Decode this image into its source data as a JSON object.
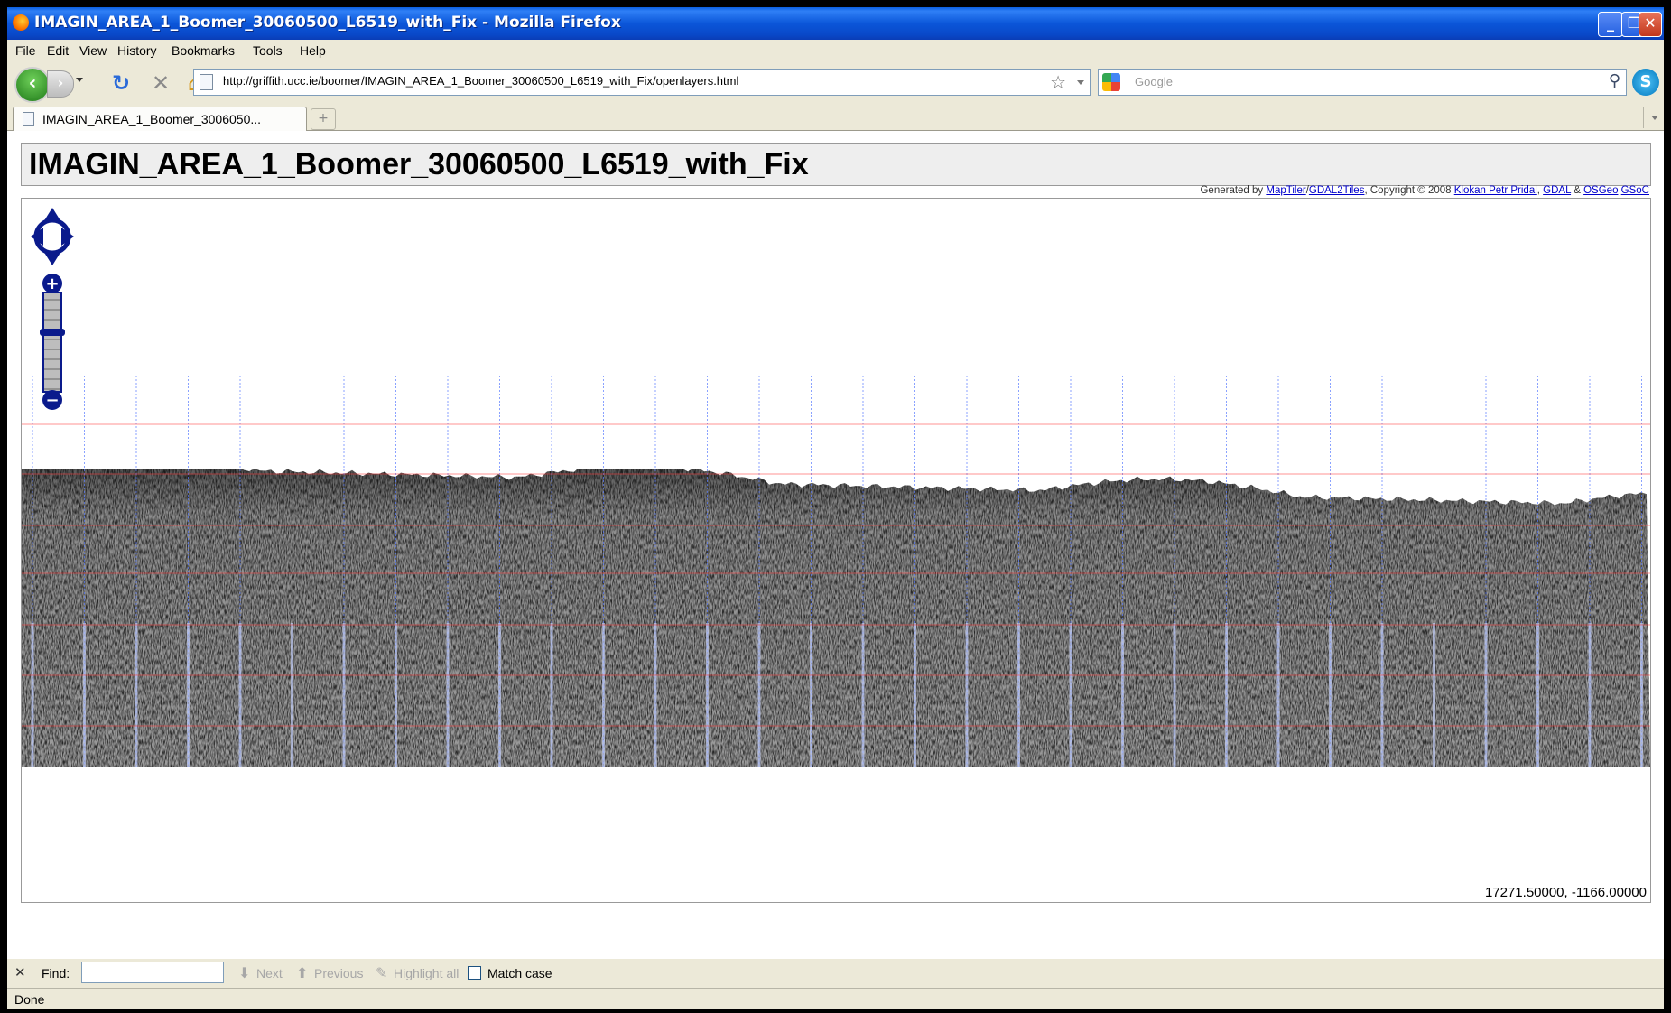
{
  "window": {
    "title": "IMAGIN_AREA_1_Boomer_30060500_L6519_with_Fix - Mozilla Firefox",
    "controls": [
      "minimize",
      "restore",
      "close"
    ]
  },
  "menu": {
    "items": [
      "File",
      "Edit",
      "View",
      "History",
      "Bookmarks",
      "Tools",
      "Help"
    ]
  },
  "navbar": {
    "url": "http://griffith.ucc.ie/boomer/IMAGIN_AREA_1_Boomer_30060500_L6519_with_Fix/openlayers.html",
    "search_placeholder": "Google",
    "icons": [
      "back-icon",
      "forward-icon",
      "reload-icon",
      "stop-icon",
      "home-icon",
      "bookmark-star-icon",
      "search-icon",
      "skype-icon"
    ]
  },
  "tabs": {
    "items": [
      {
        "label": "IMAGIN_AREA_1_Boomer_3006050..."
      }
    ],
    "newtab_label": "+"
  },
  "page": {
    "title": "IMAGIN_AREA_1_Boomer_30060500_L6519_with_Fix",
    "attribution": {
      "prefix": "Generated by ",
      "maptiler": "MapTiler",
      "sep1": "/",
      "gdal2tiles": "GDAL2Tiles",
      "copyright": ", Copyright © 2008 ",
      "klokan": "Klokan Petr Pridal",
      "sep2": ", ",
      "gdal": "GDAL",
      "amp": " & ",
      "osgeo": "OSGeo",
      "space": " ",
      "gsoc": "GSoC"
    },
    "coordinates": "17271.50000, -1166.00000",
    "map_controls": {
      "pan": "pan-control",
      "zoom_in": "+",
      "zoom_out": "−",
      "zoom_level_fraction": 0.4
    }
  },
  "findbar": {
    "label": "Find:",
    "value": "",
    "next": "Next",
    "previous": "Previous",
    "highlight_all": "Highlight all",
    "match_case": "Match case",
    "match_case_checked": false
  },
  "status": {
    "text": "Done"
  }
}
